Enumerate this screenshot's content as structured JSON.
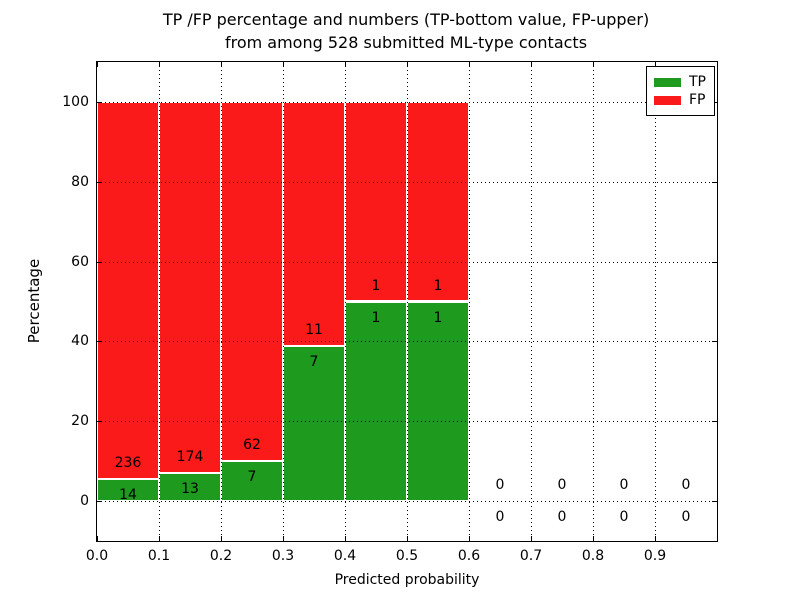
{
  "title": {
    "line1": "TP /FP percentage and numbers (TP-bottom value, FP-upper)",
    "line2": "from among 528 submitted ML-type contacts"
  },
  "axes": {
    "xlabel": "Predicted probability",
    "ylabel": "Percentage",
    "xticks": [
      "0.0",
      "0.1",
      "0.2",
      "0.3",
      "0.4",
      "0.5",
      "0.6",
      "0.7",
      "0.8",
      "0.9"
    ],
    "yticks": [
      0,
      20,
      40,
      60,
      80,
      100
    ]
  },
  "legend": {
    "entries": [
      {
        "label": "TP",
        "color": "#1e9a1e"
      },
      {
        "label": "FP",
        "color": "#fb1a1a"
      }
    ]
  },
  "colors": {
    "tp_green": "#1e9a1e",
    "fp_red": "#fb1a1a",
    "axis_black": "#000000",
    "background": "#ffffff",
    "bar_edge": "#ffffff"
  },
  "chart_data": {
    "type": "bar",
    "stacked": true,
    "title": "TP /FP percentage and numbers (TP-bottom value, FP-upper) from among 528 submitted ML-type contacts",
    "xlabel": "Predicted probability",
    "ylabel": "Percentage",
    "xlim": [
      0.0,
      1.0
    ],
    "ylim": [
      -10,
      110
    ],
    "grid": "dotted",
    "legend_position": "upper right",
    "total_contacts": 528,
    "series_names": [
      "TP",
      "FP"
    ],
    "bins": [
      {
        "range": [
          0.0,
          0.1
        ],
        "tp_count": 14,
        "fp_count": 236,
        "tp_pct": 5.6,
        "fp_pct": 94.4
      },
      {
        "range": [
          0.1,
          0.2
        ],
        "tp_count": 13,
        "fp_count": 174,
        "tp_pct": 6.95,
        "fp_pct": 93.05
      },
      {
        "range": [
          0.2,
          0.3
        ],
        "tp_count": 7,
        "fp_count": 62,
        "tp_pct": 10.14,
        "fp_pct": 89.86
      },
      {
        "range": [
          0.3,
          0.4
        ],
        "tp_count": 7,
        "fp_count": 11,
        "tp_pct": 38.89,
        "fp_pct": 61.11
      },
      {
        "range": [
          0.4,
          0.5
        ],
        "tp_count": 1,
        "fp_count": 1,
        "tp_pct": 50,
        "fp_pct": 50
      },
      {
        "range": [
          0.5,
          0.6
        ],
        "tp_count": 1,
        "fp_count": 1,
        "tp_pct": 50,
        "fp_pct": 50
      },
      {
        "range": [
          0.6,
          0.7
        ],
        "tp_count": 0,
        "fp_count": 0,
        "tp_pct": 0,
        "fp_pct": 0
      },
      {
        "range": [
          0.7,
          0.8
        ],
        "tp_count": 0,
        "fp_count": 0,
        "tp_pct": 0,
        "fp_pct": 0
      },
      {
        "range": [
          0.8,
          0.9
        ],
        "tp_count": 0,
        "fp_count": 0,
        "tp_pct": 0,
        "fp_pct": 0
      },
      {
        "range": [
          0.9,
          1.0
        ],
        "tp_count": 0,
        "fp_count": 0,
        "tp_pct": 0,
        "fp_pct": 0
      }
    ]
  }
}
